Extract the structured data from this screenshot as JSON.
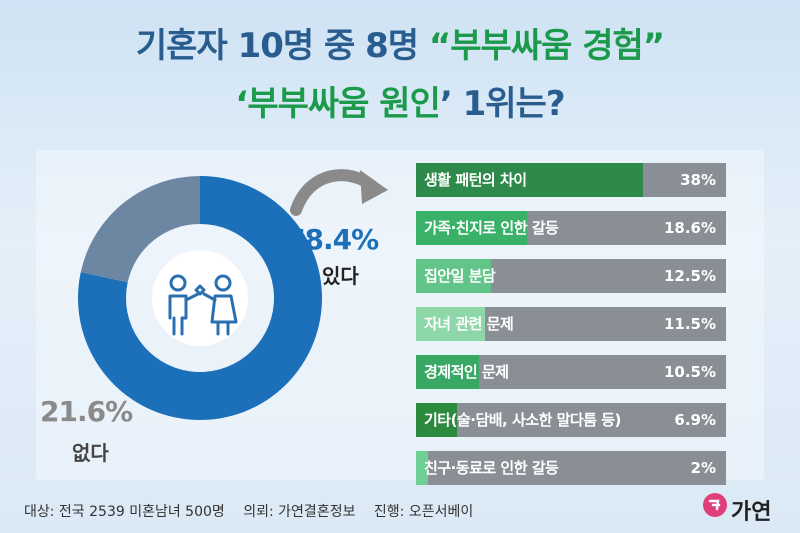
{
  "title": {
    "line1_a": "기혼자 10명 중 8명 ",
    "line1_b": "“부부싸움 경험”",
    "line2_a": "‘부부싸움 ",
    "line2_b": "원인",
    "line2_c": "’ 1위는?"
  },
  "donut": {
    "yes_value": "78.4%",
    "yes_label": "있다",
    "no_value": "21.6%",
    "no_label": "없다"
  },
  "colors": {
    "yes": "#1c6fb9",
    "no": "#6d87a3",
    "bar_bg": "#8a8f96",
    "bars": [
      "#2e8a4a",
      "#3ab169",
      "#63c489",
      "#8ed7a8",
      "#3aa865",
      "#2c8a3e",
      "#6fcf95"
    ]
  },
  "chart_data": [
    {
      "type": "pie",
      "categories": [
        "있다",
        "없다"
      ],
      "values": [
        78.4,
        21.6
      ]
    },
    {
      "type": "bar",
      "categories": [
        "생활 패턴의 차이",
        "가족·친지로 인한 갈등",
        "집안일 분담",
        "자녀 관련 문제",
        "경제적인 문제",
        "기타(술·담배, 사소한 말다툼 등)",
        "친구·동료로 인한 갈등"
      ],
      "values": [
        38,
        18.6,
        12.5,
        11.5,
        10.5,
        6.9,
        2
      ],
      "value_labels": [
        "38%",
        "18.6%",
        "12.5%",
        "11.5%",
        "10.5%",
        "6.9%",
        "2%"
      ]
    }
  ],
  "footer": {
    "target": "대상: 전국 2539 미혼남녀 500명",
    "client": "의뢰: 가연결혼정보",
    "progress": "진행: 오픈서베이",
    "logo": "가연"
  }
}
